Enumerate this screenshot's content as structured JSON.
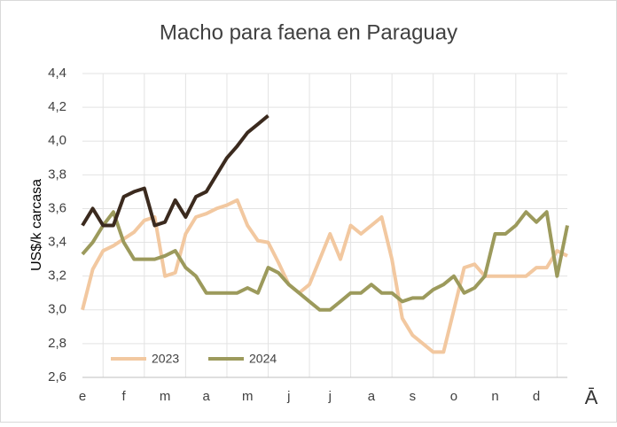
{
  "chart_data": {
    "type": "line",
    "title": "Macho para faena en Paraguay",
    "y_label": "US$/k carcasa",
    "logo": "Ā",
    "categories": [
      "e",
      null,
      null,
      null,
      "f",
      null,
      null,
      null,
      "m",
      null,
      null,
      null,
      "a",
      null,
      null,
      null,
      "m",
      null,
      null,
      null,
      "j",
      null,
      null,
      null,
      "j",
      null,
      null,
      null,
      "a",
      null,
      null,
      null,
      "s",
      null,
      null,
      null,
      "o",
      null,
      null,
      null,
      "n",
      null,
      null,
      null,
      "d",
      null,
      null,
      null
    ],
    "ylim": [
      2.6,
      4.4
    ],
    "yticks": [
      {
        "value": 2.6,
        "label": "2,6"
      },
      {
        "value": 2.8,
        "label": "2,8"
      },
      {
        "value": 3.0,
        "label": "3,0"
      },
      {
        "value": 3.2,
        "label": "3,2"
      },
      {
        "value": 3.4,
        "label": "3,4"
      },
      {
        "value": 3.6,
        "label": "3,6"
      },
      {
        "value": 3.8,
        "label": "3,8"
      },
      {
        "value": 4.0,
        "label": "4,0"
      },
      {
        "value": 4.2,
        "label": "4,2"
      },
      {
        "value": 4.4,
        "label": "4,4"
      }
    ],
    "grid": true,
    "legend": "bottom-left",
    "series": [
      {
        "name": "2023",
        "color": "#f2c8a0",
        "values": [
          3.0,
          3.24,
          3.35,
          3.38,
          3.42,
          3.46,
          3.53,
          3.55,
          3.2,
          3.22,
          3.45,
          3.55,
          3.57,
          3.6,
          3.62,
          3.65,
          3.5,
          3.41,
          3.4,
          3.28,
          3.15,
          3.1,
          3.15,
          3.3,
          3.45,
          3.3,
          3.5,
          3.45,
          3.5,
          3.55,
          3.3,
          2.95,
          2.85,
          2.8,
          2.75,
          2.75,
          3.0,
          3.25,
          3.27,
          3.2,
          3.2,
          3.2,
          3.2,
          3.2,
          3.25,
          3.25,
          3.35,
          3.32
        ]
      },
      {
        "name": "2024",
        "color": "#9c9a5c",
        "values": [
          3.33,
          3.4,
          3.5,
          3.58,
          3.4,
          3.3,
          3.3,
          3.3,
          3.32,
          3.35,
          3.25,
          3.2,
          3.1,
          3.1,
          3.1,
          3.1,
          3.13,
          3.1,
          3.25,
          3.22,
          3.15,
          3.1,
          3.05,
          3.0,
          3.0,
          3.05,
          3.1,
          3.1,
          3.15,
          3.1,
          3.1,
          3.05,
          3.07,
          3.07,
          3.12,
          3.15,
          3.2,
          3.1,
          3.13,
          3.2,
          3.45,
          3.45,
          3.5,
          3.58,
          3.52,
          3.58,
          3.2,
          3.5
        ]
      },
      {
        "color": "#3b2a1e",
        "values": [
          3.5,
          3.6,
          3.5,
          3.5,
          3.67,
          3.7,
          3.72,
          3.5,
          3.52,
          3.65,
          3.55,
          3.67,
          3.7,
          3.8,
          3.9,
          3.97,
          4.05,
          4.1,
          4.15,
          null,
          null,
          null,
          null,
          null,
          null,
          null,
          null,
          null,
          null,
          null,
          null,
          null,
          null,
          null,
          null,
          null,
          null,
          null,
          null,
          null,
          null,
          null,
          null,
          null,
          null,
          null,
          null,
          null
        ]
      }
    ]
  }
}
